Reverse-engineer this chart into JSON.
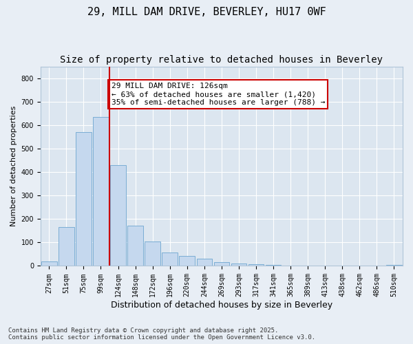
{
  "title1": "29, MILL DAM DRIVE, BEVERLEY, HU17 0WF",
  "title2": "Size of property relative to detached houses in Beverley",
  "xlabel": "Distribution of detached houses by size in Beverley",
  "ylabel": "Number of detached properties",
  "bar_labels": [
    "27sqm",
    "51sqm",
    "75sqm",
    "99sqm",
    "124sqm",
    "148sqm",
    "172sqm",
    "196sqm",
    "220sqm",
    "244sqm",
    "269sqm",
    "293sqm",
    "317sqm",
    "341sqm",
    "365sqm",
    "389sqm",
    "413sqm",
    "438sqm",
    "462sqm",
    "486sqm",
    "510sqm"
  ],
  "bar_values": [
    20,
    165,
    570,
    635,
    430,
    170,
    105,
    58,
    42,
    30,
    15,
    10,
    8,
    5,
    0,
    0,
    0,
    0,
    0,
    0,
    5
  ],
  "bar_color": "#c5d8ee",
  "bar_edge_color": "#7aadd4",
  "vline_x": 3.5,
  "vline_color": "#cc0000",
  "annotation_text": "29 MILL DAM DRIVE: 126sqm\n← 63% of detached houses are smaller (1,420)\n35% of semi-detached houses are larger (788) →",
  "annotation_box_color": "#ffffff",
  "annotation_box_edge": "#cc0000",
  "ylim": [
    0,
    850
  ],
  "yticks": [
    0,
    100,
    200,
    300,
    400,
    500,
    600,
    700,
    800
  ],
  "bg_color": "#e8eef5",
  "plot_bg_color": "#dce6f0",
  "grid_color": "#ffffff",
  "footer1": "Contains HM Land Registry data © Crown copyright and database right 2025.",
  "footer2": "Contains public sector information licensed under the Open Government Licence v3.0.",
  "title_fontsize": 11,
  "subtitle_fontsize": 10,
  "annotation_fontsize": 8,
  "tick_fontsize": 7,
  "ylabel_fontsize": 8,
  "xlabel_fontsize": 9
}
